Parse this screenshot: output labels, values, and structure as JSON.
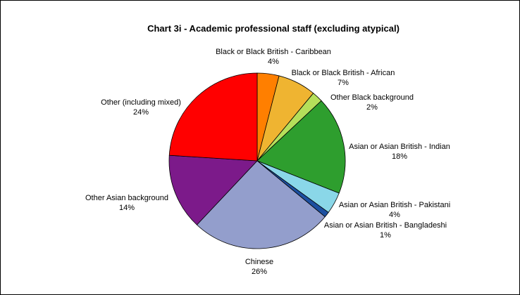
{
  "chart_data": {
    "type": "pie",
    "title": "Chart 3i - Academic professional staff (excluding atypical)",
    "start_angle_deg": 0,
    "direction": "clockwise",
    "slices": [
      {
        "label": "Black or Black British - Caribbean",
        "pct_label": "4%",
        "value": 4,
        "color": "#ff7f00"
      },
      {
        "label": "Black or Black British - African",
        "pct_label": "7%",
        "value": 7,
        "color": "#efb431"
      },
      {
        "label": "Other Black background",
        "pct_label": "2%",
        "value": 2,
        "color": "#b5df5a"
      },
      {
        "label": "Asian or Asian British - Indian",
        "pct_label": "18%",
        "value": 18,
        "color": "#2e9e2e"
      },
      {
        "label": "Asian or Asian British - Pakistani",
        "pct_label": "4%",
        "value": 4,
        "color": "#8ad7e8"
      },
      {
        "label": "Asian or Asian British - Bangladeshi",
        "pct_label": "1%",
        "value": 1,
        "color": "#1c4fa0"
      },
      {
        "label": "Chinese",
        "pct_label": "26%",
        "value": 26,
        "color": "#939ecc"
      },
      {
        "label": "Other Asian background",
        "pct_label": "14%",
        "value": 14,
        "color": "#7c1a8a"
      },
      {
        "label": "Other (including mixed)",
        "pct_label": "24%",
        "value": 24,
        "color": "#ff0000"
      }
    ]
  }
}
